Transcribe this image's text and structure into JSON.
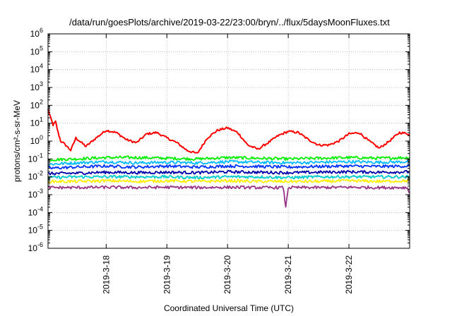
{
  "chart_data": {
    "type": "line",
    "title": "/data/run/goesPlots/archive/2019-03-22/23:00/bryn/../flux/5daysMoonFluxes.txt",
    "xlabel": "Coordinated Universal Time (UTC)",
    "ylabel": "protons/cm²-s-sr-MeV",
    "y_scale": "log",
    "ylim": [
      1e-06,
      1000000.0
    ],
    "y_ticks": [
      {
        "value": 1e-06,
        "base": "10",
        "exp": "-6"
      },
      {
        "value": 1e-05,
        "base": "10",
        "exp": "-5"
      },
      {
        "value": 0.0001,
        "base": "10",
        "exp": "-4"
      },
      {
        "value": 0.001,
        "base": "10",
        "exp": "-3"
      },
      {
        "value": 0.01,
        "base": "10",
        "exp": "-2"
      },
      {
        "value": 0.1,
        "base": "10",
        "exp": "-1"
      },
      {
        "value": 1,
        "base": "10",
        "exp": "0"
      },
      {
        "value": 10,
        "base": "10",
        "exp": "1"
      },
      {
        "value": 100,
        "base": "10",
        "exp": "2"
      },
      {
        "value": 1000,
        "base": "10",
        "exp": "3"
      },
      {
        "value": 10000,
        "base": "10",
        "exp": "4"
      },
      {
        "value": 100000,
        "base": "10",
        "exp": "5"
      },
      {
        "value": 1000000,
        "base": "10",
        "exp": "6"
      }
    ],
    "xlim": [
      "2019-03-17 01:00",
      "2019-03-23 00:00"
    ],
    "x_ticks": [
      "2019-3-18",
      "2019-3-19",
      "2019-3-20",
      "2019-3-21",
      "2019-3-22"
    ],
    "grid": true,
    "legend": "none",
    "series": [
      {
        "color": "#ff0000",
        "x": [
          "2019-03-17 01:00",
          "2019-03-17 02:00",
          "2019-03-17 03:00",
          "2019-03-17 04:00",
          "2019-03-17 05:00",
          "2019-03-17 06:00",
          "2019-03-17 08:00",
          "2019-03-17 10:00",
          "2019-03-17 12:00",
          "2019-03-17 16:00",
          "2019-03-17 20:00",
          "2019-03-18 00:00",
          "2019-03-18 04:00",
          "2019-03-18 08:00",
          "2019-03-18 12:00",
          "2019-03-18 16:00",
          "2019-03-18 20:00",
          "2019-03-19 00:00",
          "2019-03-19 04:00",
          "2019-03-19 08:00",
          "2019-03-19 12:00",
          "2019-03-19 16:00",
          "2019-03-19 20:00",
          "2019-03-20 00:00",
          "2019-03-20 04:00",
          "2019-03-20 08:00",
          "2019-03-20 12:00",
          "2019-03-20 16:00",
          "2019-03-20 20:00",
          "2019-03-21 00:00",
          "2019-03-21 04:00",
          "2019-03-21 08:00",
          "2019-03-21 12:00",
          "2019-03-21 16:00",
          "2019-03-21 20:00",
          "2019-03-22 00:00",
          "2019-03-22 04:00",
          "2019-03-22 08:00",
          "2019-03-22 12:00",
          "2019-03-22 16:00",
          "2019-03-22 20:00",
          "2019-03-23 00:00"
        ],
        "values": [
          60,
          20,
          8,
          12,
          3,
          1,
          0.6,
          0.3,
          1.5,
          0.5,
          1.5,
          4,
          3,
          1.2,
          0.8,
          2.5,
          3,
          1.5,
          0.8,
          0.3,
          0.2,
          1.5,
          4,
          5.5,
          3,
          0.6,
          0.35,
          0.8,
          2,
          3.5,
          3,
          1.2,
          0.6,
          0.6,
          1,
          2.5,
          3,
          1,
          0.4,
          1,
          3,
          2.5
        ]
      },
      {
        "color": "#00ee00",
        "x": [
          "2019-03-17 01:00",
          "2019-03-17 12:00",
          "2019-03-18 00:00",
          "2019-03-18 12:00",
          "2019-03-19 00:00",
          "2019-03-19 12:00",
          "2019-03-20 00:00",
          "2019-03-20 12:00",
          "2019-03-21 00:00",
          "2019-03-21 12:00",
          "2019-03-22 00:00",
          "2019-03-22 12:00",
          "2019-03-23 00:00"
        ],
        "values": [
          0.09,
          0.1,
          0.12,
          0.12,
          0.11,
          0.1,
          0.12,
          0.11,
          0.1,
          0.11,
          0.12,
          0.11,
          0.12
        ]
      },
      {
        "color": "#00bbff",
        "x": [
          "2019-03-17 01:00",
          "2019-03-17 12:00",
          "2019-03-18 00:00",
          "2019-03-18 12:00",
          "2019-03-19 00:00",
          "2019-03-19 12:00",
          "2019-03-20 00:00",
          "2019-03-20 12:00",
          "2019-03-21 00:00",
          "2019-03-21 12:00",
          "2019-03-22 00:00",
          "2019-03-22 12:00",
          "2019-03-23 00:00"
        ],
        "values": [
          0.05,
          0.06,
          0.07,
          0.06,
          0.065,
          0.06,
          0.07,
          0.065,
          0.06,
          0.065,
          0.07,
          0.065,
          0.07
        ]
      },
      {
        "color": "#0033ff",
        "x": [
          "2019-03-17 01:00",
          "2019-03-17 12:00",
          "2019-03-18 00:00",
          "2019-03-18 12:00",
          "2019-03-19 00:00",
          "2019-03-19 12:00",
          "2019-03-20 00:00",
          "2019-03-20 12:00",
          "2019-03-21 00:00",
          "2019-03-21 12:00",
          "2019-03-22 00:00",
          "2019-03-22 12:00",
          "2019-03-23 00:00"
        ],
        "values": [
          0.03,
          0.035,
          0.04,
          0.035,
          0.04,
          0.035,
          0.04,
          0.038,
          0.035,
          0.038,
          0.04,
          0.038,
          0.04
        ]
      },
      {
        "color": "#0000aa",
        "x": [
          "2019-03-17 01:00",
          "2019-03-17 12:00",
          "2019-03-18 00:00",
          "2019-03-18 12:00",
          "2019-03-19 00:00",
          "2019-03-19 12:00",
          "2019-03-20 00:00",
          "2019-03-20 12:00",
          "2019-03-21 00:00",
          "2019-03-21 12:00",
          "2019-03-22 00:00",
          "2019-03-22 12:00",
          "2019-03-23 00:00"
        ],
        "values": [
          0.015,
          0.016,
          0.018,
          0.017,
          0.018,
          0.017,
          0.019,
          0.018,
          0.017,
          0.018,
          0.019,
          0.018,
          0.019
        ]
      },
      {
        "color": "#00cccc",
        "x": [
          "2019-03-17 01:00",
          "2019-03-17 12:00",
          "2019-03-18 00:00",
          "2019-03-18 12:00",
          "2019-03-19 00:00",
          "2019-03-19 12:00",
          "2019-03-20 00:00",
          "2019-03-20 12:00",
          "2019-03-21 00:00",
          "2019-03-21 12:00",
          "2019-03-22 00:00",
          "2019-03-22 12:00",
          "2019-03-23 00:00"
        ],
        "values": [
          0.009,
          0.01,
          0.01,
          0.01,
          0.01,
          0.009,
          0.01,
          0.01,
          0.009,
          0.01,
          0.01,
          0.01,
          0.01
        ]
      },
      {
        "color": "#ffee00",
        "x": [
          "2019-03-17 01:00",
          "2019-03-17 12:00",
          "2019-03-18 00:00",
          "2019-03-18 12:00",
          "2019-03-19 00:00",
          "2019-03-19 12:00",
          "2019-03-20 00:00",
          "2019-03-20 12:00",
          "2019-03-21 00:00",
          "2019-03-21 12:00",
          "2019-03-22 00:00",
          "2019-03-22 12:00",
          "2019-03-23 00:00"
        ],
        "values": [
          0.0055,
          0.0055,
          0.006,
          0.0055,
          0.006,
          0.0055,
          0.006,
          0.0055,
          0.0055,
          0.0055,
          0.006,
          0.0055,
          0.006
        ]
      },
      {
        "color": "#993388",
        "x": [
          "2019-03-17 01:00",
          "2019-03-17 12:00",
          "2019-03-18 00:00",
          "2019-03-18 12:00",
          "2019-03-19 00:00",
          "2019-03-19 12:00",
          "2019-03-20 00:00",
          "2019-03-20 12:00",
          "2019-03-20 22:00",
          "2019-03-20 23:00",
          "2019-03-21 00:00",
          "2019-03-21 12:00",
          "2019-03-22 00:00",
          "2019-03-22 12:00",
          "2019-03-22 23:00",
          "2019-03-23 00:00"
        ],
        "values": [
          0.0025,
          0.0025,
          0.0026,
          0.0025,
          0.0026,
          0.0025,
          0.0026,
          0.0025,
          0.0025,
          0.0002,
          0.0025,
          0.0025,
          0.0026,
          0.0025,
          0.0025,
          0.0013
        ]
      }
    ]
  }
}
